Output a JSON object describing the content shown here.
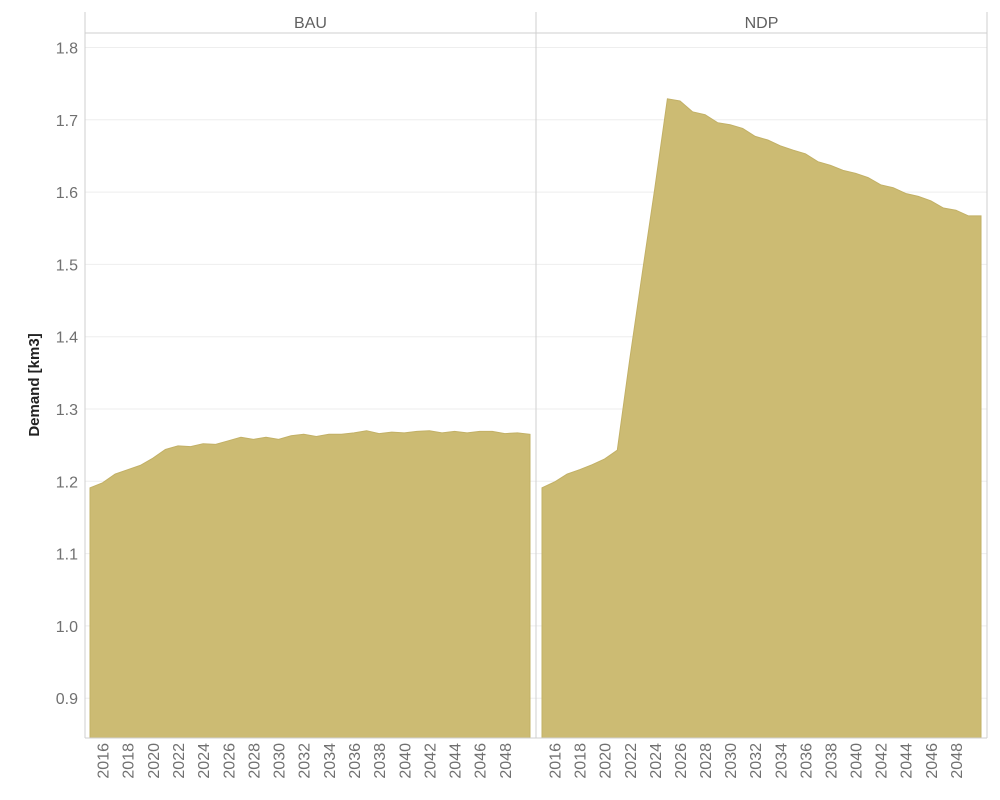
{
  "chart_data": {
    "type": "area",
    "ylabel": "Demand [km3]",
    "xlabel": "",
    "ylim": [
      0.845,
      1.82
    ],
    "yticks": [
      0.9,
      1.0,
      1.1,
      1.2,
      1.3,
      1.4,
      1.5,
      1.6,
      1.7,
      1.8
    ],
    "ytick_labels": [
      "0.9",
      "1.0",
      "1.1",
      "1.2",
      "1.3",
      "1.4",
      "1.5",
      "1.6",
      "1.7",
      "1.8"
    ],
    "xlim": [
      2015,
      2050
    ],
    "xticks": [
      2016,
      2018,
      2020,
      2022,
      2024,
      2026,
      2028,
      2030,
      2032,
      2034,
      2036,
      2038,
      2040,
      2042,
      2044,
      2046,
      2048
    ],
    "xtick_labels": [
      "2016",
      "2018",
      "2020",
      "2022",
      "2024",
      "2026",
      "2028",
      "2030",
      "2032",
      "2034",
      "2036",
      "2038",
      "2040",
      "2042",
      "2044",
      "2046",
      "2048"
    ],
    "fill_color": "#CCBB73",
    "grid": true,
    "x": [
      2015,
      2016,
      2017,
      2018,
      2019,
      2020,
      2021,
      2022,
      2023,
      2024,
      2025,
      2026,
      2027,
      2028,
      2029,
      2030,
      2031,
      2032,
      2033,
      2034,
      2035,
      2036,
      2037,
      2038,
      2039,
      2040,
      2041,
      2042,
      2043,
      2044,
      2045,
      2046,
      2047,
      2048,
      2049,
      2050
    ],
    "panels": [
      {
        "name": "BAU",
        "values": [
          1.191,
          1.198,
          1.21,
          1.216,
          1.222,
          1.232,
          1.244,
          1.249,
          1.248,
          1.252,
          1.251,
          1.256,
          1.261,
          1.258,
          1.261,
          1.258,
          1.263,
          1.265,
          1.262,
          1.265,
          1.265,
          1.267,
          1.27,
          1.266,
          1.268,
          1.267,
          1.269,
          1.27,
          1.267,
          1.269,
          1.267,
          1.269,
          1.269,
          1.266,
          1.267,
          1.265
        ]
      },
      {
        "name": "NDP",
        "values": [
          1.191,
          1.199,
          1.21,
          1.216,
          1.223,
          1.231,
          1.243,
          1.369,
          1.488,
          1.606,
          1.729,
          1.726,
          1.711,
          1.707,
          1.696,
          1.693,
          1.688,
          1.677,
          1.672,
          1.664,
          1.658,
          1.653,
          1.642,
          1.637,
          1.63,
          1.626,
          1.62,
          1.61,
          1.606,
          1.598,
          1.594,
          1.588,
          1.578,
          1.575,
          1.567,
          1.567
        ]
      }
    ]
  }
}
